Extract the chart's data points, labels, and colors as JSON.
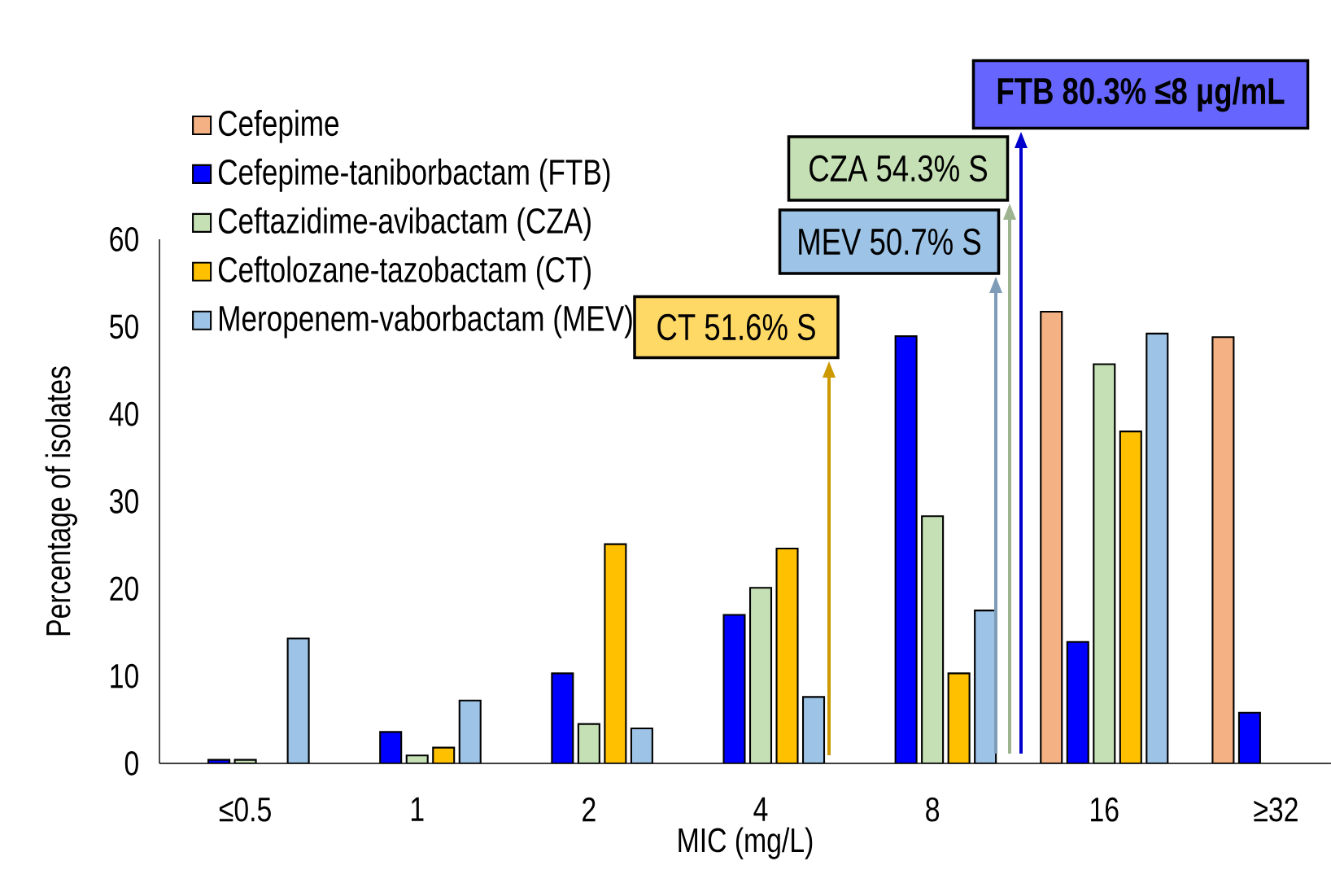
{
  "chart_data": {
    "type": "bar",
    "xlabel": "MIC (mg/L)",
    "ylabel": "Percentage of isolates",
    "categories": [
      "≤0.5",
      "1",
      "2",
      "4",
      "8",
      "16",
      "≥32"
    ],
    "series": [
      {
        "name": "Cefepime",
        "color": "#f4b183",
        "values": [
          null,
          null,
          null,
          null,
          null,
          51.7,
          48.8
        ]
      },
      {
        "name": "Cefepime-taniborbactam (FTB)",
        "color": "#0000ff",
        "values": [
          0.4,
          3.6,
          10.3,
          17.0,
          48.9,
          13.9,
          5.8
        ]
      },
      {
        "name": "Ceftazidime-avibactam (CZA)",
        "color": "#c5e0b4",
        "values": [
          0.4,
          0.9,
          4.5,
          20.1,
          28.3,
          45.7,
          null
        ]
      },
      {
        "name": "Ceftolozane-tazobactam (CT)",
        "color": "#ffc000",
        "values": [
          null,
          1.8,
          25.1,
          24.6,
          10.3,
          38.0,
          null
        ]
      },
      {
        "name": "Meropenem-vaborbactam (MEV)",
        "color": "#9dc3e6",
        "values": [
          14.3,
          7.2,
          4.0,
          7.6,
          17.5,
          49.2,
          null
        ]
      }
    ],
    "ylim": [
      0,
      60
    ],
    "yticks": [
      0,
      10,
      20,
      30,
      40,
      50,
      60
    ],
    "legend": "top left",
    "annotations": [
      "**FTB 80.3% ≤8 μg/mL**",
      "CZA 54.3% S",
      "MEV 50.7% S",
      "CT 51.6% S"
    ]
  }
}
